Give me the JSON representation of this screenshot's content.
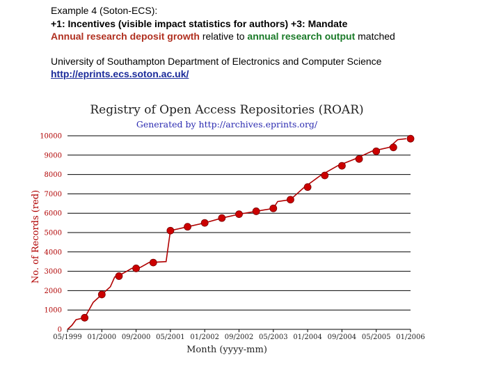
{
  "header": {
    "line1": "Example 4 (Soton-ECS):",
    "line2": "+1: Incentives (visible impact statistics for authors) +3: Mandate",
    "line3_red": "Annual research deposit growth",
    "line3_mid": " relative  to ",
    "line3_green": "annual research output",
    "line3_end": " matched",
    "line4": "University of Southampton Department of Electronics and Computer Science",
    "link": "http://eprints.ecs.soton.ac.uk/"
  },
  "colors": {
    "line": "#b00000",
    "marker": "#cc0000",
    "axis_text": "#b00000",
    "subtitle": "#2a2ab0"
  },
  "chart_data": {
    "type": "line",
    "title": "Registry of Open Access Repositories (ROAR)",
    "subtitle": "Generated by http://archives.eprints.org/",
    "xlabel": "Month (yyyy-mm)",
    "ylabel": "No. of Records (red)",
    "ylim": [
      0,
      10000
    ],
    "yticks": [
      0,
      1000,
      2000,
      3000,
      4000,
      5000,
      6000,
      7000,
      8000,
      9000,
      10000
    ],
    "xticks": [
      "05/1999",
      "01/2000",
      "09/2000",
      "05/2001",
      "01/2002",
      "09/2002",
      "05/2003",
      "01/2004",
      "09/2004",
      "05/2005",
      "01/2006"
    ],
    "xrange": [
      "1999-05",
      "2006-01"
    ],
    "grid": "horizontal",
    "series": [
      {
        "line": [
          [
            "1999-05",
            0
          ],
          [
            "1999-06",
            200
          ],
          [
            "1999-07",
            500
          ],
          [
            "1999-09",
            600
          ],
          [
            "1999-11",
            1400
          ],
          [
            "2000-01",
            1800
          ],
          [
            "2000-03",
            2200
          ],
          [
            "2000-04",
            2700
          ],
          [
            "2000-06",
            2900
          ],
          [
            "2000-08",
            3150
          ],
          [
            "2000-10",
            3200
          ],
          [
            "2000-12",
            3450
          ],
          [
            "2001-04",
            3500
          ],
          [
            "2001-05",
            5100
          ],
          [
            "2001-09",
            5300
          ],
          [
            "2002-01",
            5500
          ],
          [
            "2002-05",
            5750
          ],
          [
            "2002-09",
            5950
          ],
          [
            "2003-01",
            6100
          ],
          [
            "2003-05",
            6250
          ],
          [
            "2003-06",
            6600
          ],
          [
            "2003-09",
            6700
          ],
          [
            "2003-12",
            7300
          ],
          [
            "2004-04",
            7950
          ],
          [
            "2004-08",
            8450
          ],
          [
            "2004-12",
            8800
          ],
          [
            "2005-04",
            9200
          ],
          [
            "2005-08",
            9400
          ],
          [
            "2005-10",
            9800
          ],
          [
            "2005-12",
            9850
          ]
        ],
        "markers": [
          [
            "1999-09",
            600
          ],
          [
            "2000-01",
            1800
          ],
          [
            "2000-05",
            2750
          ],
          [
            "2000-09",
            3150
          ],
          [
            "2001-01",
            3450
          ],
          [
            "2001-05",
            5100
          ],
          [
            "2001-09",
            5300
          ],
          [
            "2002-01",
            5500
          ],
          [
            "2002-05",
            5750
          ],
          [
            "2002-09",
            5950
          ],
          [
            "2003-01",
            6100
          ],
          [
            "2003-05",
            6250
          ],
          [
            "2003-09",
            6700
          ],
          [
            "2004-01",
            7350
          ],
          [
            "2004-05",
            7950
          ],
          [
            "2004-09",
            8450
          ],
          [
            "2005-01",
            8800
          ],
          [
            "2005-05",
            9200
          ],
          [
            "2005-09",
            9400
          ],
          [
            "2006-01",
            9850
          ]
        ]
      }
    ]
  }
}
